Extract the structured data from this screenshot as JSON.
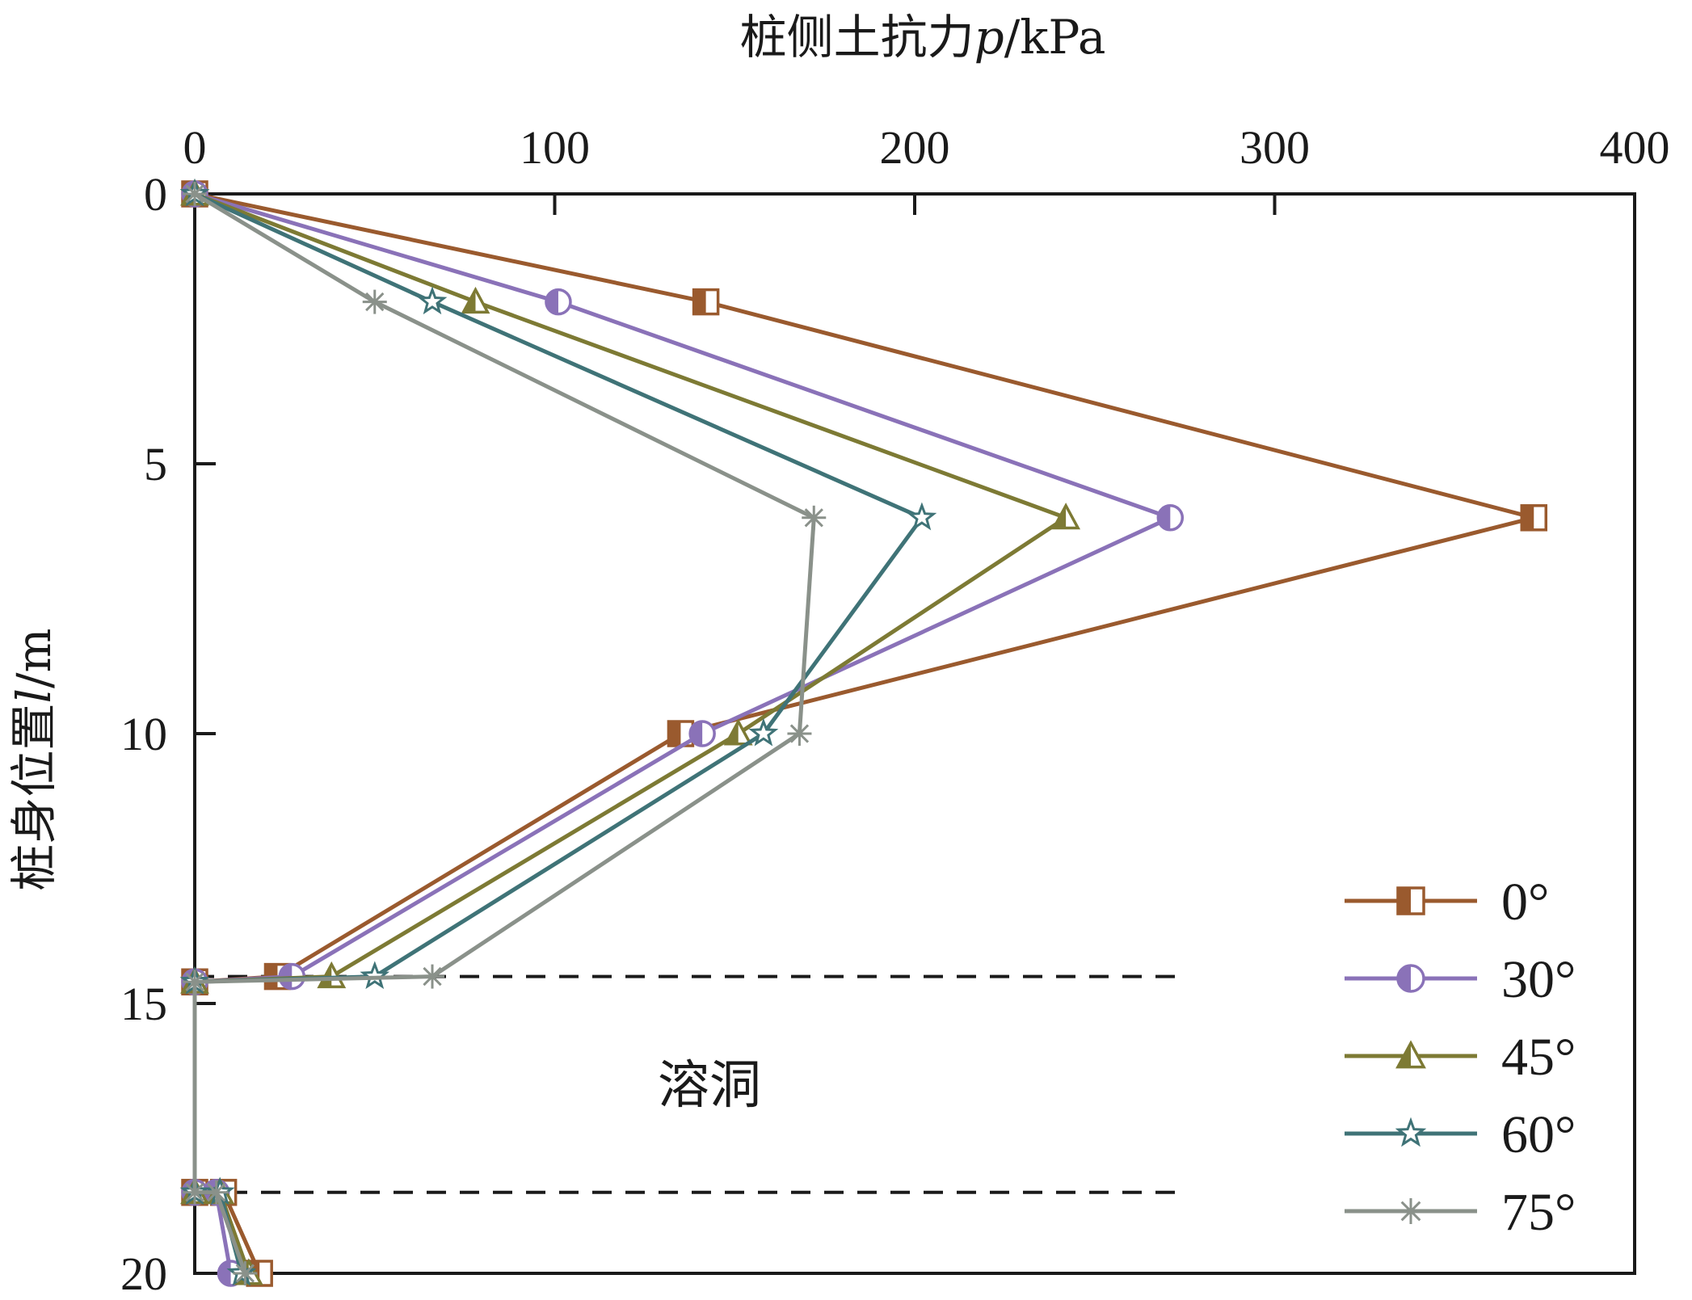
{
  "chart_data": {
    "type": "line",
    "xlabel_text": "桩侧土抗力",
    "xlabel_var": "p",
    "xlabel_unit": "/kPa",
    "ylabel_text": "桩身位置",
    "ylabel_var": "l",
    "ylabel_unit": "/m",
    "xlim": [
      0,
      400
    ],
    "ylim": [
      0,
      20
    ],
    "x_axis_position": "top",
    "y_axis_inverted": true,
    "x_ticks": [
      0,
      100,
      200,
      300,
      400
    ],
    "y_ticks": [
      0,
      5,
      10,
      15,
      20
    ],
    "grid": false,
    "legend_position": "bottom-right",
    "annotation": "溶洞",
    "dashed_lines_y": [
      14.5,
      18.5
    ],
    "series": [
      {
        "name": "0°",
        "color": "#9a5a2e",
        "marker": "half-square",
        "points": [
          [
            0,
            0
          ],
          [
            142,
            2
          ],
          [
            372,
            6
          ],
          [
            135,
            10
          ],
          [
            23,
            14.5
          ],
          [
            0,
            14.6
          ],
          [
            0,
            18.5
          ],
          [
            8,
            18.5
          ],
          [
            18,
            20
          ]
        ]
      },
      {
        "name": "30°",
        "color": "#8a72b8",
        "marker": "half-circle",
        "points": [
          [
            0,
            0
          ],
          [
            101,
            2
          ],
          [
            271,
            6
          ],
          [
            141,
            10
          ],
          [
            27,
            14.5
          ],
          [
            0,
            14.6
          ],
          [
            0,
            18.5
          ],
          [
            6,
            18.5
          ],
          [
            10,
            20
          ]
        ]
      },
      {
        "name": "45°",
        "color": "#7d7a34",
        "marker": "half-triangle",
        "points": [
          [
            0,
            0
          ],
          [
            78,
            2
          ],
          [
            242,
            6
          ],
          [
            151,
            10
          ],
          [
            38,
            14.5
          ],
          [
            0,
            14.6
          ],
          [
            0,
            18.5
          ],
          [
            7,
            18.5
          ],
          [
            15,
            20
          ]
        ]
      },
      {
        "name": "60°",
        "color": "#3f7377",
        "marker": "star",
        "points": [
          [
            0,
            0
          ],
          [
            66,
            2
          ],
          [
            202,
            6
          ],
          [
            158,
            10
          ],
          [
            50,
            14.5
          ],
          [
            0,
            14.6
          ],
          [
            0,
            18.5
          ],
          [
            7,
            18.5
          ],
          [
            13,
            20
          ]
        ]
      },
      {
        "name": "75°",
        "color": "#8a918a",
        "marker": "asterisk",
        "points": [
          [
            0,
            0
          ],
          [
            50,
            2
          ],
          [
            172,
            6
          ],
          [
            168,
            10
          ],
          [
            66,
            14.5
          ],
          [
            0,
            14.6
          ],
          [
            0,
            18.5
          ],
          [
            6,
            18.5
          ],
          [
            14,
            20
          ]
        ]
      }
    ]
  }
}
